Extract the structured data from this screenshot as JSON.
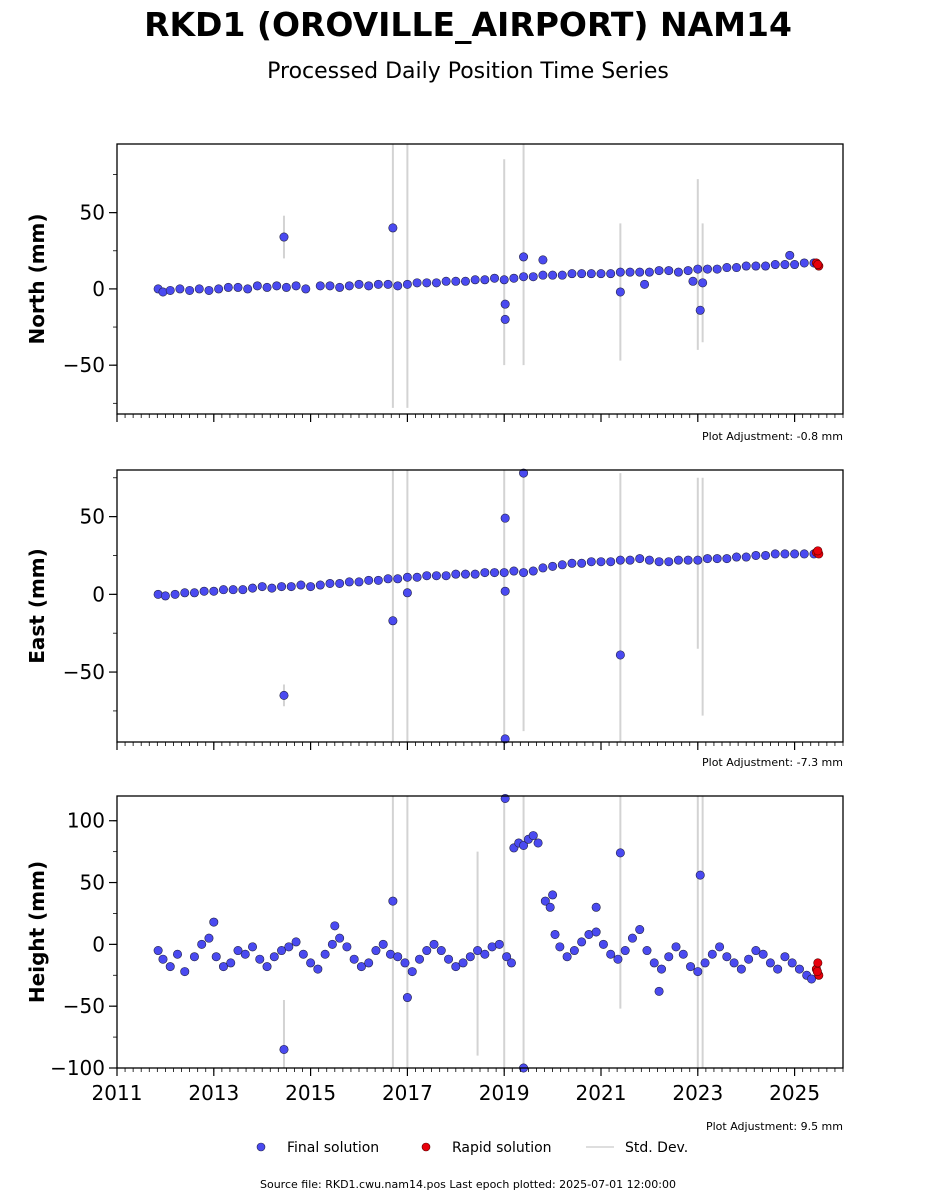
{
  "title": "RKD1 (OROVILLE_AIRPORT) NAM14",
  "subtitle": "Processed Daily Position Time Series",
  "footer": "Source file: RKD1.cwu.nam14.pos  Last epoch plotted: 2025-07-01 12:00:00",
  "colors": {
    "final": "#4a4af0",
    "rapid": "#e8000b",
    "stddev": "#d3d3d3",
    "edge": "#222244"
  },
  "legend": {
    "placement": "bottom-center",
    "items": [
      {
        "key": "final",
        "label": "Final solution"
      },
      {
        "key": "rapid",
        "label": "Rapid solution"
      },
      {
        "key": "stddev",
        "label": "Std. Dev."
      }
    ]
  },
  "chart_data": [
    {
      "type": "scatter",
      "ylabel": "North (mm)",
      "ylim": [
        -82,
        95
      ],
      "xlim": [
        2011,
        2026
      ],
      "yticks": [
        50,
        0,
        -50
      ],
      "yticks_labels": [
        "50",
        "0",
        "−50"
      ],
      "xticks": [
        2011,
        2013,
        2015,
        2017,
        2019,
        2021,
        2023,
        2025
      ],
      "note": "Plot Adjustment: -0.8 mm",
      "grid": false,
      "final": [
        [
          2011.85,
          0
        ],
        [
          2011.95,
          -2
        ],
        [
          2012.1,
          -1
        ],
        [
          2012.3,
          0
        ],
        [
          2012.5,
          -1
        ],
        [
          2012.7,
          0
        ],
        [
          2012.9,
          -1
        ],
        [
          2013.1,
          0
        ],
        [
          2013.3,
          1
        ],
        [
          2013.5,
          1
        ],
        [
          2013.7,
          0
        ],
        [
          2013.9,
          2
        ],
        [
          2014.1,
          1
        ],
        [
          2014.3,
          2
        ],
        [
          2014.5,
          1
        ],
        [
          2014.7,
          2
        ],
        [
          2014.9,
          0
        ],
        [
          2015.2,
          2
        ],
        [
          2015.4,
          2
        ],
        [
          2015.6,
          1
        ],
        [
          2015.8,
          2
        ],
        [
          2016.0,
          3
        ],
        [
          2016.2,
          2
        ],
        [
          2016.4,
          3
        ],
        [
          2016.6,
          3
        ],
        [
          2016.8,
          2
        ],
        [
          2017.0,
          3
        ],
        [
          2017.2,
          4
        ],
        [
          2017.4,
          4
        ],
        [
          2017.6,
          4
        ],
        [
          2017.8,
          5
        ],
        [
          2018.0,
          5
        ],
        [
          2018.2,
          5
        ],
        [
          2018.4,
          6
        ],
        [
          2018.6,
          6
        ],
        [
          2018.8,
          7
        ],
        [
          2019.0,
          6
        ],
        [
          2019.2,
          7
        ],
        [
          2019.4,
          8
        ],
        [
          2019.6,
          8
        ],
        [
          2019.8,
          9
        ],
        [
          2020.0,
          9
        ],
        [
          2020.2,
          9
        ],
        [
          2020.4,
          10
        ],
        [
          2020.6,
          10
        ],
        [
          2020.8,
          10
        ],
        [
          2021.0,
          10
        ],
        [
          2021.2,
          10
        ],
        [
          2021.4,
          11
        ],
        [
          2021.6,
          11
        ],
        [
          2021.8,
          11
        ],
        [
          2022.0,
          11
        ],
        [
          2022.2,
          12
        ],
        [
          2022.4,
          12
        ],
        [
          2022.6,
          11
        ],
        [
          2022.8,
          12
        ],
        [
          2023.0,
          13
        ],
        [
          2023.2,
          13
        ],
        [
          2023.4,
          13
        ],
        [
          2023.6,
          14
        ],
        [
          2023.8,
          14
        ],
        [
          2024.0,
          15
        ],
        [
          2024.2,
          15
        ],
        [
          2024.4,
          15
        ],
        [
          2024.6,
          16
        ],
        [
          2024.8,
          16
        ],
        [
          2025.0,
          16
        ],
        [
          2025.2,
          17
        ],
        [
          2025.4,
          17
        ],
        [
          2014.45,
          34
        ],
        [
          2016.7,
          40
        ],
        [
          2019.4,
          21
        ],
        [
          2019.8,
          19
        ],
        [
          2019.02,
          -10
        ],
        [
          2019.02,
          -20
        ],
        [
          2021.4,
          -2
        ],
        [
          2023.05,
          -14
        ],
        [
          2023.1,
          4
        ],
        [
          2022.9,
          5
        ],
        [
          2021.9,
          3
        ],
        [
          2024.9,
          22
        ]
      ],
      "rapid": [
        [
          2025.45,
          17
        ],
        [
          2025.5,
          15
        ],
        [
          2025.48,
          16
        ]
      ],
      "stddev": [
        [
          2016.7,
          -78,
          95
        ],
        [
          2017.0,
          -78,
          95
        ],
        [
          2019.0,
          -50,
          85
        ],
        [
          2019.4,
          -50,
          95
        ],
        [
          2021.4,
          -47,
          43
        ],
        [
          2023.0,
          -40,
          72
        ],
        [
          2023.1,
          -35,
          43
        ],
        [
          2014.45,
          20,
          48
        ]
      ]
    },
    {
      "type": "scatter",
      "ylabel": "East (mm)",
      "ylim": [
        -95,
        80
      ],
      "xlim": [
        2011,
        2026
      ],
      "yticks": [
        50,
        0,
        -50
      ],
      "yticks_labels": [
        "50",
        "0",
        "−50"
      ],
      "xticks": [
        2011,
        2013,
        2015,
        2017,
        2019,
        2021,
        2023,
        2025
      ],
      "note": "Plot Adjustment: -7.3 mm",
      "grid": false,
      "final": [
        [
          2011.85,
          0
        ],
        [
          2012.0,
          -1
        ],
        [
          2012.2,
          0
        ],
        [
          2012.4,
          1
        ],
        [
          2012.6,
          1
        ],
        [
          2012.8,
          2
        ],
        [
          2013.0,
          2
        ],
        [
          2013.2,
          3
        ],
        [
          2013.4,
          3
        ],
        [
          2013.6,
          3
        ],
        [
          2013.8,
          4
        ],
        [
          2014.0,
          5
        ],
        [
          2014.2,
          4
        ],
        [
          2014.4,
          5
        ],
        [
          2014.6,
          5
        ],
        [
          2014.8,
          6
        ],
        [
          2015.0,
          5
        ],
        [
          2015.2,
          6
        ],
        [
          2015.4,
          7
        ],
        [
          2015.6,
          7
        ],
        [
          2015.8,
          8
        ],
        [
          2016.0,
          8
        ],
        [
          2016.2,
          9
        ],
        [
          2016.4,
          9
        ],
        [
          2016.6,
          10
        ],
        [
          2016.8,
          10
        ],
        [
          2017.0,
          11
        ],
        [
          2017.2,
          11
        ],
        [
          2017.4,
          12
        ],
        [
          2017.6,
          12
        ],
        [
          2017.8,
          12
        ],
        [
          2018.0,
          13
        ],
        [
          2018.2,
          13
        ],
        [
          2018.4,
          13
        ],
        [
          2018.6,
          14
        ],
        [
          2018.8,
          14
        ],
        [
          2019.0,
          14
        ],
        [
          2019.2,
          15
        ],
        [
          2019.4,
          14
        ],
        [
          2019.6,
          15
        ],
        [
          2019.8,
          17
        ],
        [
          2020.0,
          18
        ],
        [
          2020.2,
          19
        ],
        [
          2020.4,
          20
        ],
        [
          2020.6,
          20
        ],
        [
          2020.8,
          21
        ],
        [
          2021.0,
          21
        ],
        [
          2021.2,
          21
        ],
        [
          2021.4,
          22
        ],
        [
          2021.6,
          22
        ],
        [
          2021.8,
          23
        ],
        [
          2022.0,
          22
        ],
        [
          2022.2,
          21
        ],
        [
          2022.4,
          21
        ],
        [
          2022.6,
          22
        ],
        [
          2022.8,
          22
        ],
        [
          2023.0,
          22
        ],
        [
          2023.2,
          23
        ],
        [
          2023.4,
          23
        ],
        [
          2023.6,
          23
        ],
        [
          2023.8,
          24
        ],
        [
          2024.0,
          24
        ],
        [
          2024.2,
          25
        ],
        [
          2024.4,
          25
        ],
        [
          2024.6,
          26
        ],
        [
          2024.8,
          26
        ],
        [
          2025.0,
          26
        ],
        [
          2025.2,
          26
        ],
        [
          2025.4,
          26
        ],
        [
          2014.45,
          -65
        ],
        [
          2016.7,
          -17
        ],
        [
          2017.0,
          1
        ],
        [
          2019.02,
          49
        ],
        [
          2019.02,
          2
        ],
        [
          2019.02,
          -93
        ],
        [
          2019.4,
          78
        ],
        [
          2021.4,
          -39
        ]
      ],
      "rapid": [
        [
          2025.45,
          27
        ],
        [
          2025.5,
          26
        ],
        [
          2025.48,
          28
        ]
      ],
      "stddev": [
        [
          2016.7,
          -95,
          80
        ],
        [
          2017.0,
          -95,
          80
        ],
        [
          2019.0,
          -95,
          80
        ],
        [
          2019.4,
          -88,
          80
        ],
        [
          2021.4,
          -95,
          78
        ],
        [
          2023.0,
          -35,
          75
        ],
        [
          2023.1,
          -78,
          75
        ],
        [
          2014.45,
          -72,
          -58
        ]
      ]
    },
    {
      "type": "scatter",
      "ylabel": "Height (mm)",
      "ylim": [
        -100,
        120
      ],
      "xlim": [
        2011,
        2026
      ],
      "yticks": [
        100,
        50,
        0,
        -50,
        -100
      ],
      "yticks_labels": [
        "100",
        "50",
        "0",
        "−50",
        "−100"
      ],
      "xticks": [
        2011,
        2013,
        2015,
        2017,
        2019,
        2021,
        2023,
        2025
      ],
      "xticks_labels": [
        "2011",
        "2013",
        "2015",
        "2017",
        "2019",
        "2021",
        "2023",
        "2025"
      ],
      "note": "Plot Adjustment: 9.5 mm",
      "grid": false,
      "final": [
        [
          2011.85,
          -5
        ],
        [
          2011.95,
          -12
        ],
        [
          2012.1,
          -18
        ],
        [
          2012.25,
          -8
        ],
        [
          2012.4,
          -22
        ],
        [
          2012.6,
          -10
        ],
        [
          2012.75,
          0
        ],
        [
          2012.9,
          5
        ],
        [
          2013.05,
          -10
        ],
        [
          2013.2,
          -18
        ],
        [
          2013.35,
          -15
        ],
        [
          2013.5,
          -5
        ],
        [
          2013.65,
          -8
        ],
        [
          2013.8,
          -2
        ],
        [
          2013.95,
          -12
        ],
        [
          2014.1,
          -18
        ],
        [
          2014.25,
          -10
        ],
        [
          2014.4,
          -5
        ],
        [
          2014.55,
          -2
        ],
        [
          2014.7,
          2
        ],
        [
          2014.85,
          -8
        ],
        [
          2015.0,
          -15
        ],
        [
          2015.15,
          -20
        ],
        [
          2015.3,
          -8
        ],
        [
          2015.45,
          0
        ],
        [
          2015.6,
          5
        ],
        [
          2015.75,
          -2
        ],
        [
          2015.9,
          -12
        ],
        [
          2016.05,
          -18
        ],
        [
          2016.2,
          -15
        ],
        [
          2016.35,
          -5
        ],
        [
          2016.5,
          0
        ],
        [
          2016.65,
          -8
        ],
        [
          2016.8,
          -10
        ],
        [
          2016.95,
          -15
        ],
        [
          2017.1,
          -22
        ],
        [
          2017.25,
          -12
        ],
        [
          2017.4,
          -5
        ],
        [
          2017.55,
          0
        ],
        [
          2017.7,
          -5
        ],
        [
          2017.85,
          -12
        ],
        [
          2018.0,
          -18
        ],
        [
          2018.15,
          -15
        ],
        [
          2018.3,
          -10
        ],
        [
          2018.45,
          -5
        ],
        [
          2018.6,
          -8
        ],
        [
          2018.75,
          -2
        ],
        [
          2018.9,
          0
        ],
        [
          2019.05,
          -10
        ],
        [
          2019.15,
          -15
        ],
        [
          2019.2,
          78
        ],
        [
          2019.3,
          82
        ],
        [
          2019.4,
          80
        ],
        [
          2019.5,
          85
        ],
        [
          2019.6,
          88
        ],
        [
          2019.7,
          82
        ],
        [
          2019.85,
          35
        ],
        [
          2019.95,
          30
        ],
        [
          2020.0,
          40
        ],
        [
          2020.05,
          8
        ],
        [
          2020.15,
          -2
        ],
        [
          2020.3,
          -10
        ],
        [
          2020.45,
          -5
        ],
        [
          2020.6,
          2
        ],
        [
          2020.75,
          8
        ],
        [
          2020.9,
          10
        ],
        [
          2021.05,
          0
        ],
        [
          2021.2,
          -8
        ],
        [
          2021.35,
          -12
        ],
        [
          2021.5,
          -5
        ],
        [
          2021.65,
          5
        ],
        [
          2021.8,
          12
        ],
        [
          2021.95,
          -5
        ],
        [
          2022.1,
          -15
        ],
        [
          2022.25,
          -20
        ],
        [
          2022.4,
          -10
        ],
        [
          2022.55,
          -2
        ],
        [
          2022.7,
          -8
        ],
        [
          2022.85,
          -18
        ],
        [
          2023.0,
          -22
        ],
        [
          2023.15,
          -15
        ],
        [
          2023.3,
          -8
        ],
        [
          2023.45,
          -2
        ],
        [
          2023.6,
          -10
        ],
        [
          2023.75,
          -15
        ],
        [
          2023.9,
          -20
        ],
        [
          2024.05,
          -12
        ],
        [
          2024.2,
          -5
        ],
        [
          2024.35,
          -8
        ],
        [
          2024.5,
          -15
        ],
        [
          2024.65,
          -20
        ],
        [
          2024.8,
          -10
        ],
        [
          2024.95,
          -15
        ],
        [
          2025.1,
          -20
        ],
        [
          2025.25,
          -25
        ],
        [
          2025.35,
          -28
        ],
        [
          2014.45,
          -85
        ],
        [
          2016.7,
          35
        ],
        [
          2017.0,
          -43
        ],
        [
          2019.02,
          118
        ],
        [
          2019.4,
          -100
        ],
        [
          2021.4,
          74
        ],
        [
          2023.05,
          56
        ],
        [
          2013.0,
          18
        ],
        [
          2020.9,
          30
        ],
        [
          2015.5,
          15
        ],
        [
          2022.2,
          -38
        ]
      ],
      "rapid": [
        [
          2025.45,
          -20
        ],
        [
          2025.5,
          -25
        ],
        [
          2025.48,
          -15
        ],
        [
          2025.47,
          -22
        ]
      ],
      "stddev": [
        [
          2016.7,
          -100,
          120
        ],
        [
          2017.0,
          -100,
          120
        ],
        [
          2019.0,
          -100,
          120
        ],
        [
          2019.4,
          -100,
          120
        ],
        [
          2021.4,
          -52,
          120
        ],
        [
          2023.0,
          -100,
          120
        ],
        [
          2023.1,
          -100,
          120
        ],
        [
          2018.45,
          -90,
          75
        ],
        [
          2014.45,
          -100,
          -45
        ]
      ]
    }
  ]
}
